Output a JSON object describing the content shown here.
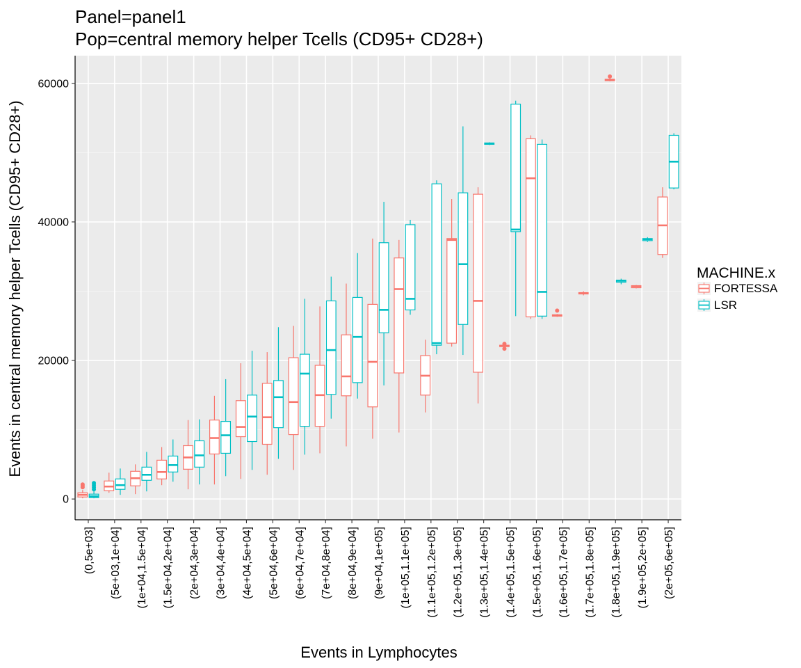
{
  "chart_data": {
    "type": "boxplot",
    "title_lines": [
      "Panel=panel1",
      "Pop=central memory helper Tcells (CD95+ CD28+)"
    ],
    "xlabel": "Events in Lymphocytes",
    "ylabel": "Events in central memory helper Tcells (CD95+ CD28+)",
    "ylim": [
      -3000,
      64000
    ],
    "yticks": [
      0,
      20000,
      40000,
      60000
    ],
    "ytick_labels": [
      "0",
      "20000",
      "40000",
      "60000"
    ],
    "categories": [
      "(0,5e+03]",
      "(5e+03,1e+04]",
      "(1e+04,1.5e+04]",
      "(1.5e+04,2e+04]",
      "(2e+04,3e+04]",
      "(3e+04,4e+04]",
      "(4e+04,5e+04]",
      "(5e+04,6e+04]",
      "(6e+04,7e+04]",
      "(7e+04,8e+04]",
      "(8e+04,9e+04]",
      "(9e+04,1e+05]",
      "(1e+05,1.1e+05]",
      "(1.1e+05,1.2e+05]",
      "(1.2e+05,1.3e+05]",
      "(1.3e+05,1.4e+05]",
      "(1.4e+05,1.5e+05]",
      "(1.5e+05,1.6e+05]",
      "(1.6e+05,1.7e+05]",
      "(1.7e+05,1.8e+05]",
      "(1.8e+05,1.9e+05]",
      "(1.9e+05,2e+05]",
      "(2e+05,6e+05]"
    ],
    "grid": true,
    "legend": {
      "title": "MACHINE.x",
      "position": "right"
    },
    "series": [
      {
        "name": "FORTESSA",
        "color": "#F8766D",
        "boxes": [
          {
            "cat": 0,
            "min": 100,
            "q1": 300,
            "median": 600,
            "q3": 900,
            "max": 1300,
            "outliers": [
              1700,
              1900,
              2100
            ]
          },
          {
            "cat": 1,
            "min": 900,
            "q1": 1200,
            "median": 1800,
            "q3": 2600,
            "max": 3800,
            "outliers": []
          },
          {
            "cat": 2,
            "min": 700,
            "q1": 1900,
            "median": 3000,
            "q3": 4000,
            "max": 5000,
            "outliers": []
          },
          {
            "cat": 3,
            "min": 2000,
            "q1": 2900,
            "median": 3900,
            "q3": 5600,
            "max": 7500,
            "outliers": []
          },
          {
            "cat": 4,
            "min": 1400,
            "q1": 4300,
            "median": 6000,
            "q3": 7700,
            "max": 11400,
            "outliers": []
          },
          {
            "cat": 5,
            "min": 2100,
            "q1": 6500,
            "median": 8800,
            "q3": 11400,
            "max": 14900,
            "outliers": []
          },
          {
            "cat": 6,
            "min": 2900,
            "q1": 9000,
            "median": 10400,
            "q3": 14200,
            "max": 19600,
            "outliers": []
          },
          {
            "cat": 7,
            "min": 3500,
            "q1": 7900,
            "median": 11800,
            "q3": 16700,
            "max": 21200,
            "outliers": []
          },
          {
            "cat": 8,
            "min": 4200,
            "q1": 9300,
            "median": 14000,
            "q3": 20400,
            "max": 25000,
            "outliers": []
          },
          {
            "cat": 9,
            "min": 6600,
            "q1": 10500,
            "median": 15000,
            "q3": 19300,
            "max": 27800,
            "outliers": []
          },
          {
            "cat": 10,
            "min": 7600,
            "q1": 14900,
            "median": 17700,
            "q3": 23700,
            "max": 31100,
            "outliers": []
          },
          {
            "cat": 11,
            "min": 8700,
            "q1": 13300,
            "median": 19800,
            "q3": 28100,
            "max": 37600,
            "outliers": []
          },
          {
            "cat": 12,
            "min": 9600,
            "q1": 18200,
            "median": 30300,
            "q3": 34800,
            "max": 37400,
            "outliers": []
          },
          {
            "cat": 13,
            "min": 12500,
            "q1": 15000,
            "median": 17800,
            "q3": 20700,
            "max": 23000,
            "outliers": []
          },
          {
            "cat": 14,
            "min": 22000,
            "q1": 22500,
            "median": 37400,
            "q3": 37600,
            "max": 43300,
            "outliers": []
          },
          {
            "cat": 15,
            "min": 13800,
            "q1": 18300,
            "median": 28600,
            "q3": 44000,
            "max": 45000,
            "outliers": []
          },
          {
            "cat": 16,
            "min": 21700,
            "q1": 22000,
            "median": 22100,
            "q3": 22200,
            "max": 22300,
            "outliers": [
              21700,
              22400
            ]
          },
          {
            "cat": 17,
            "min": 26000,
            "q1": 26300,
            "median": 46300,
            "q3": 52000,
            "max": 52500,
            "outliers": []
          },
          {
            "cat": 18,
            "min": 26300,
            "q1": 26400,
            "median": 26500,
            "q3": 26600,
            "max": 26700,
            "outliers": [
              27200
            ]
          },
          {
            "cat": 19,
            "min": 29400,
            "q1": 29600,
            "median": 29700,
            "q3": 29800,
            "max": 30000,
            "outliers": []
          },
          {
            "cat": 20,
            "min": 60300,
            "q1": 60400,
            "median": 60500,
            "q3": 60600,
            "max": 60700,
            "outliers": [
              61000
            ]
          },
          {
            "cat": 21,
            "min": 30400,
            "q1": 30500,
            "median": 30700,
            "q3": 30800,
            "max": 30900,
            "outliers": []
          },
          {
            "cat": 22,
            "min": 34800,
            "q1": 35300,
            "median": 39500,
            "q3": 43600,
            "max": 45000,
            "outliers": []
          }
        ]
      },
      {
        "name": "LSR",
        "color": "#00BFC4",
        "boxes": [
          {
            "cat": 0,
            "min": 100,
            "q1": 200,
            "median": 400,
            "q3": 700,
            "max": 1100,
            "outliers": [
              1400,
              1700,
              2000,
              2300
            ]
          },
          {
            "cat": 1,
            "min": 600,
            "q1": 1400,
            "median": 2000,
            "q3": 2900,
            "max": 4400,
            "outliers": []
          },
          {
            "cat": 2,
            "min": 1100,
            "q1": 2700,
            "median": 3500,
            "q3": 4600,
            "max": 6800,
            "outliers": []
          },
          {
            "cat": 3,
            "min": 2500,
            "q1": 3900,
            "median": 4900,
            "q3": 6200,
            "max": 8600,
            "outliers": []
          },
          {
            "cat": 4,
            "min": 2100,
            "q1": 4600,
            "median": 6300,
            "q3": 8400,
            "max": 11500,
            "outliers": []
          },
          {
            "cat": 5,
            "min": 3300,
            "q1": 6600,
            "median": 9200,
            "q3": 11200,
            "max": 17300,
            "outliers": []
          },
          {
            "cat": 6,
            "min": 4200,
            "q1": 8300,
            "median": 11900,
            "q3": 15000,
            "max": 21400,
            "outliers": []
          },
          {
            "cat": 7,
            "min": 5800,
            "q1": 10300,
            "median": 14700,
            "q3": 17100,
            "max": 24800,
            "outliers": []
          },
          {
            "cat": 8,
            "min": 6400,
            "q1": 10500,
            "median": 18100,
            "q3": 20900,
            "max": 28900,
            "outliers": []
          },
          {
            "cat": 9,
            "min": 11600,
            "q1": 15100,
            "median": 21500,
            "q3": 28600,
            "max": 32100,
            "outliers": []
          },
          {
            "cat": 10,
            "min": 14500,
            "q1": 16800,
            "median": 23400,
            "q3": 29100,
            "max": 35500,
            "outliers": []
          },
          {
            "cat": 11,
            "min": 16400,
            "q1": 24000,
            "median": 27300,
            "q3": 37000,
            "max": 42900,
            "outliers": []
          },
          {
            "cat": 12,
            "min": 26600,
            "q1": 27300,
            "median": 28900,
            "q3": 39600,
            "max": 40300,
            "outliers": []
          },
          {
            "cat": 13,
            "min": 20900,
            "q1": 22200,
            "median": 22500,
            "q3": 45500,
            "max": 46000,
            "outliers": []
          },
          {
            "cat": 14,
            "min": 20800,
            "q1": 25200,
            "median": 33900,
            "q3": 44200,
            "max": 53800,
            "outliers": []
          },
          {
            "cat": 15,
            "min": 51100,
            "q1": 51200,
            "median": 51300,
            "q3": 51400,
            "max": 51500,
            "outliers": []
          },
          {
            "cat": 16,
            "min": 26400,
            "q1": 38600,
            "median": 38900,
            "q3": 57000,
            "max": 57500,
            "outliers": []
          },
          {
            "cat": 17,
            "min": 26000,
            "q1": 26400,
            "median": 29900,
            "q3": 51200,
            "max": 51900,
            "outliers": []
          },
          {
            "cat": 20,
            "min": 31000,
            "q1": 31300,
            "median": 31500,
            "q3": 31600,
            "max": 31800,
            "outliers": []
          },
          {
            "cat": 21,
            "min": 37100,
            "q1": 37300,
            "median": 37500,
            "q3": 37600,
            "max": 37800,
            "outliers": []
          },
          {
            "cat": 22,
            "min": 44700,
            "q1": 44900,
            "median": 48700,
            "q3": 52500,
            "max": 52800,
            "outliers": []
          }
        ]
      }
    ]
  }
}
